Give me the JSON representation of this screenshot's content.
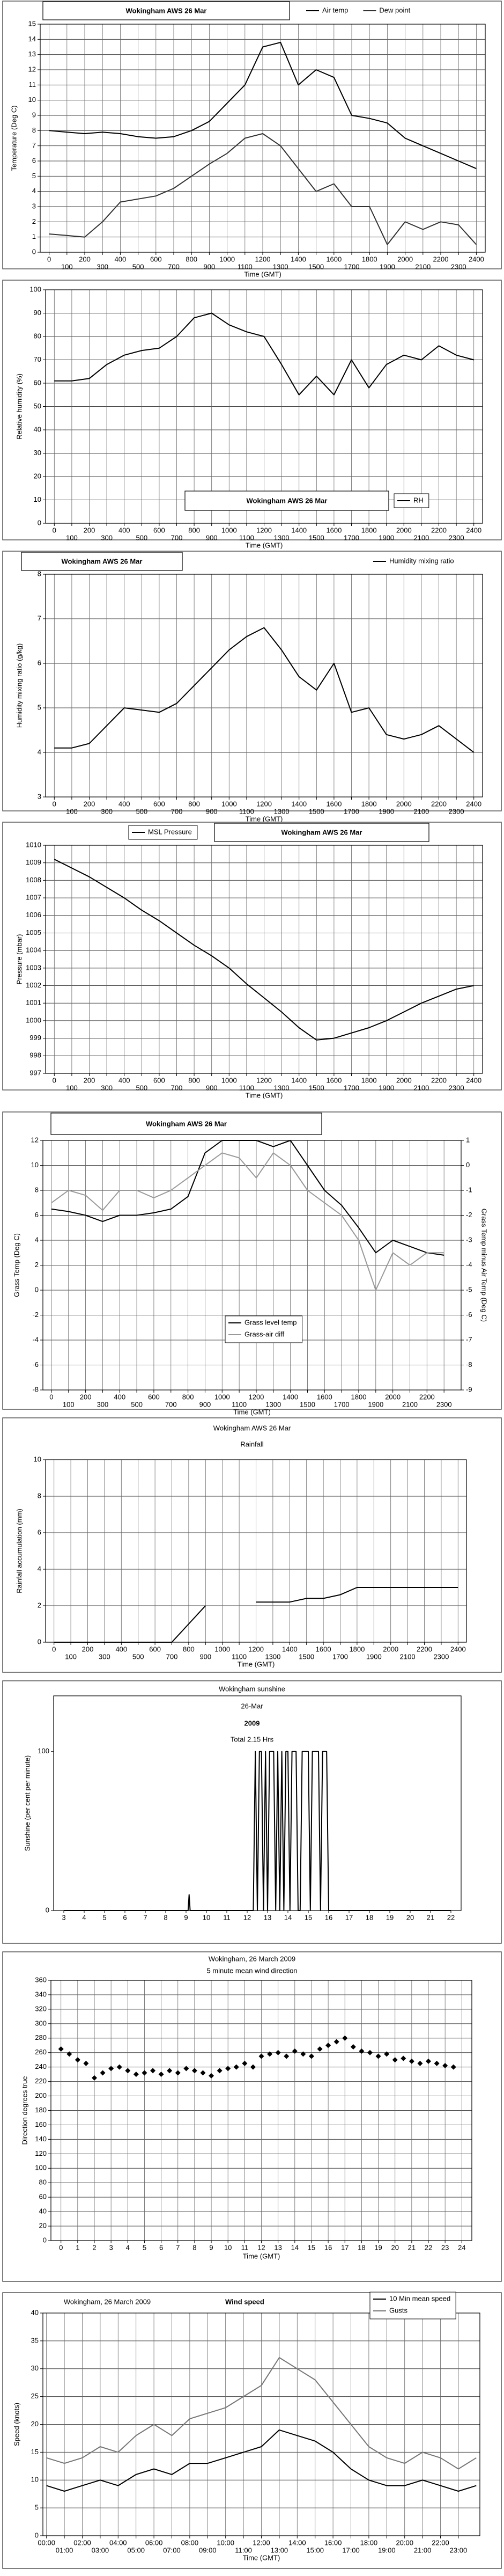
{
  "chart_data": [
    {
      "type": "line",
      "title": "Wokingham AWS 26 Mar",
      "x_label": "Time (GMT)",
      "y_label": "Temperature (Deg C)",
      "grid": true,
      "x": [
        0,
        100,
        200,
        300,
        400,
        500,
        600,
        700,
        800,
        900,
        1000,
        1100,
        1200,
        1300,
        1400,
        1500,
        1600,
        1700,
        1800,
        1900,
        2000,
        2100,
        2200,
        2300,
        2400
      ],
      "xlim": [
        -50,
        2450
      ],
      "xticks": [
        0,
        100,
        200,
        300,
        400,
        500,
        600,
        700,
        800,
        900,
        1000,
        1100,
        1200,
        1300,
        1400,
        1500,
        1600,
        1700,
        1800,
        1900,
        2000,
        2100,
        2200,
        2300,
        2400
      ],
      "ylim": [
        0,
        15
      ],
      "yticks": [
        0,
        1,
        2,
        3,
        4,
        5,
        6,
        7,
        8,
        9,
        10,
        11,
        12,
        13,
        14,
        15
      ],
      "series": [
        {
          "name": "Air temp",
          "color": "#000000",
          "values": [
            8,
            7.9,
            7.8,
            7.9,
            7.8,
            7.6,
            7.5,
            7.6,
            8,
            8.6,
            9.8,
            11,
            13.5,
            13.8,
            11,
            12,
            11.5,
            9,
            8.8,
            8.5,
            7.5,
            7,
            6.5,
            6,
            5.5
          ]
        },
        {
          "name": "Dew point",
          "color": "#333333",
          "values": [
            1.2,
            1.1,
            1,
            2,
            3.3,
            3.5,
            3.7,
            4.2,
            5,
            5.8,
            6.5,
            7.5,
            7.8,
            7,
            5.5,
            4,
            4.5,
            3,
            3,
            0.5,
            2,
            1.5,
            2,
            1.8,
            0.5
          ]
        }
      ]
    },
    {
      "type": "line",
      "title": "Wokingham AWS 26 Mar",
      "x_label": "Time (GMT)",
      "y_label": "Relative humidity (%)",
      "grid": true,
      "x": [
        0,
        100,
        200,
        300,
        400,
        500,
        600,
        700,
        800,
        900,
        1000,
        1100,
        1200,
        1300,
        1400,
        1500,
        1600,
        1700,
        1800,
        1900,
        2000,
        2100,
        2200,
        2300,
        2400
      ],
      "xlim": [
        -50,
        2450
      ],
      "xticks": [
        0,
        100,
        200,
        300,
        400,
        500,
        600,
        700,
        800,
        900,
        1000,
        1100,
        1200,
        1300,
        1400,
        1500,
        1600,
        1700,
        1800,
        1900,
        2000,
        2100,
        2200,
        2300,
        2400
      ],
      "ylim": [
        0,
        100
      ],
      "yticks": [
        0,
        10,
        20,
        30,
        40,
        50,
        60,
        70,
        80,
        90,
        100
      ],
      "series": [
        {
          "name": "RH",
          "color": "#000000",
          "values": [
            61,
            61,
            62,
            68,
            72,
            74,
            75,
            80,
            88,
            90,
            85,
            82,
            80,
            68,
            55,
            63,
            55,
            70,
            58,
            68,
            72,
            70,
            76,
            72,
            70
          ]
        }
      ]
    },
    {
      "type": "line",
      "title": "Wokingham AWS 26 Mar",
      "x_label": "Time (GMT)",
      "y_label": "Humidity mixing ratio (g/kg)",
      "grid": true,
      "x": [
        0,
        100,
        200,
        300,
        400,
        500,
        600,
        700,
        800,
        900,
        1000,
        1100,
        1200,
        1300,
        1400,
        1500,
        1600,
        1700,
        1800,
        1900,
        2000,
        2100,
        2200,
        2300,
        2400
      ],
      "xlim": [
        -50,
        2450
      ],
      "xticks": [
        0,
        100,
        200,
        300,
        400,
        500,
        600,
        700,
        800,
        900,
        1000,
        1100,
        1200,
        1300,
        1400,
        1500,
        1600,
        1700,
        1800,
        1900,
        2000,
        2100,
        2200,
        2300,
        2400
      ],
      "ylim": [
        3,
        8
      ],
      "yticks": [
        3,
        4,
        5,
        6,
        7,
        8
      ],
      "series": [
        {
          "name": "Humidity mixing ratio",
          "color": "#000000",
          "values": [
            4.1,
            4.1,
            4.2,
            4.6,
            5,
            4.95,
            4.9,
            5.1,
            5.5,
            5.9,
            6.3,
            6.6,
            6.8,
            6.3,
            5.7,
            5.4,
            6,
            4.9,
            5,
            4.4,
            4.3,
            4.4,
            4.6,
            4.3,
            4
          ]
        }
      ]
    },
    {
      "type": "line",
      "title": "Wokingham AWS 26 Mar",
      "x_label": "Time (GMT)",
      "y_label": "Pressure (mbar)",
      "grid": true,
      "x": [
        0,
        100,
        200,
        300,
        400,
        500,
        600,
        700,
        800,
        900,
        1000,
        1100,
        1200,
        1300,
        1400,
        1500,
        1600,
        1700,
        1800,
        1900,
        2000,
        2100,
        2200,
        2300,
        2400
      ],
      "xlim": [
        -50,
        2450
      ],
      "xticks": [
        0,
        100,
        200,
        300,
        400,
        500,
        600,
        700,
        800,
        900,
        1000,
        1100,
        1200,
        1300,
        1400,
        1500,
        1600,
        1700,
        1800,
        1900,
        2000,
        2100,
        2200,
        2300,
        2400
      ],
      "ylim": [
        997,
        1010
      ],
      "yticks": [
        997,
        998,
        999,
        1000,
        1001,
        1002,
        1003,
        1004,
        1005,
        1006,
        1007,
        1008,
        1009,
        1010
      ],
      "series": [
        {
          "name": "MSL Pressure",
          "color": "#000000",
          "values": [
            1009.2,
            1008.7,
            1008.2,
            1007.6,
            1007,
            1006.3,
            1005.7,
            1005,
            1004.3,
            1003.7,
            1003,
            1002.1,
            1001.3,
            1000.5,
            999.6,
            998.9,
            999,
            999.3,
            999.6,
            1000,
            1000.5,
            1001,
            1001.4,
            1001.8,
            1002
          ]
        }
      ]
    },
    {
      "type": "line",
      "title": "Wokingham AWS 26 Mar",
      "x_label": "Time (GMT)",
      "y_label": "Grass Temp (Deg C)",
      "y2_label": "Grass Temp minus Air Temp (Deg C)",
      "grid": true,
      "x": [
        0,
        100,
        200,
        300,
        400,
        500,
        600,
        700,
        800,
        900,
        1000,
        1100,
        1200,
        1300,
        1400,
        1500,
        1600,
        1700,
        1800,
        1900,
        2000,
        2100,
        2200,
        2300
      ],
      "xlim": [
        -50,
        2400
      ],
      "xticks": [
        0,
        100,
        200,
        300,
        400,
        500,
        600,
        700,
        800,
        900,
        1000,
        1100,
        1200,
        1300,
        1400,
        1500,
        1600,
        1700,
        1800,
        1900,
        2000,
        2100,
        2200,
        2300
      ],
      "ylim": [
        -8,
        12
      ],
      "yticks": [
        -8,
        -6,
        -4,
        -2,
        0,
        2,
        4,
        6,
        8,
        10,
        12
      ],
      "y2lim": [
        -9,
        1
      ],
      "y2ticks": [
        -9,
        -8,
        -7,
        -6,
        -5,
        -4,
        -3,
        -2,
        -1,
        0,
        1
      ],
      "series": [
        {
          "name": "Grass level temp",
          "color": "#000000",
          "values": [
            6.5,
            6.3,
            6,
            5.5,
            6,
            6,
            6.2,
            6.5,
            7.5,
            11,
            12,
            12,
            12,
            11.5,
            12,
            10,
            8,
            6.8,
            5,
            3,
            4,
            3.5,
            3,
            2.8
          ]
        },
        {
          "name": "Grass-air diff",
          "color": "#999999",
          "axis": "y2",
          "values": [
            -1.5,
            -1,
            -1.2,
            -1.8,
            -1,
            -1,
            -1.3,
            -1,
            -0.5,
            0,
            0.5,
            0.3,
            -0.5,
            0.5,
            0,
            -1,
            -1.5,
            -2,
            -3,
            -5,
            -3.5,
            -4,
            -3.5,
            -3.5
          ]
        }
      ]
    },
    {
      "type": "line",
      "title": "Wokingham AWS 26 Mar",
      "subtitle": "Rainfall",
      "x_label": "Time (GMT)",
      "y_label": "Rainfall accumulation (mm)",
      "grid": true,
      "x": [
        0,
        100,
        200,
        300,
        400,
        500,
        600,
        700,
        800,
        900,
        1000,
        1100,
        1200,
        1300,
        1400,
        1500,
        1600,
        1700,
        1800,
        1900,
        2000,
        2100,
        2200,
        2300,
        2400
      ],
      "xlim": [
        -50,
        2450
      ],
      "xticks": [
        0,
        100,
        200,
        300,
        400,
        500,
        600,
        700,
        800,
        900,
        1000,
        1100,
        1200,
        1300,
        1400,
        1500,
        1600,
        1700,
        1800,
        1900,
        2000,
        2100,
        2200,
        2300,
        2400
      ],
      "ylim": [
        0,
        10
      ],
      "yticks": [
        0,
        2,
        4,
        6,
        8,
        10
      ],
      "series": [
        {
          "name": "Rainfall",
          "color": "#000000",
          "values": [
            0,
            0,
            0,
            0,
            0,
            0,
            0,
            0,
            1,
            2,
            null,
            null,
            2.2,
            2.2,
            2.2,
            2.4,
            2.4,
            2.6,
            3,
            3,
            3,
            3,
            3,
            3,
            3
          ]
        }
      ]
    },
    {
      "type": "line",
      "title": "Wokingham sunshine",
      "annotations": [
        "26-Mar",
        "2009",
        "Total 2.15 Hrs"
      ],
      "y_label": "Sunshine (per cent per minute)",
      "grid": false,
      "x": [
        3,
        9.1,
        9.15,
        9.2,
        12.3,
        12.4,
        12.5,
        12.6,
        12.7,
        12.8,
        12.9,
        13,
        13.1,
        13.2,
        13.3,
        13.4,
        13.5,
        13.6,
        13.7,
        13.8,
        13.9,
        14,
        14.1,
        14.2,
        14.3,
        14.4,
        14.5,
        14.6,
        14.7,
        14.8,
        14.9,
        15,
        15.1,
        15.2,
        15.3,
        15.4,
        15.5,
        15.6,
        15.7,
        15.8,
        15.9,
        16,
        16.1,
        22
      ],
      "xlim": [
        2.5,
        22.5
      ],
      "xticks": [
        3,
        4,
        5,
        6,
        7,
        8,
        9,
        10,
        11,
        12,
        13,
        14,
        15,
        16,
        17,
        18,
        19,
        20,
        21,
        22
      ],
      "ylim": [
        0,
        135
      ],
      "yticks": [
        0,
        100
      ],
      "series": [
        {
          "name": "Sunshine",
          "color": "#000000",
          "values": [
            0,
            0,
            10,
            0,
            0,
            100,
            0,
            100,
            100,
            0,
            100,
            0,
            100,
            100,
            100,
            0,
            100,
            0,
            100,
            0,
            100,
            100,
            0,
            100,
            100,
            100,
            0,
            0,
            100,
            100,
            100,
            100,
            0,
            100,
            100,
            100,
            100,
            0,
            100,
            100,
            100,
            0,
            0,
            0
          ]
        }
      ]
    },
    {
      "type": "scatter",
      "title": "Wokingham,  26 March 2009",
      "subtitle": "5 minute mean wind direction",
      "x_label": "Time (GMT)",
      "y_label": "Direction degrees true",
      "grid": true,
      "x": [
        0,
        0.5,
        1,
        1.5,
        2,
        2.5,
        3,
        3.5,
        4,
        4.5,
        5,
        5.5,
        6,
        6.5,
        7,
        7.5,
        8,
        8.5,
        9,
        9.5,
        10,
        10.5,
        11,
        11.5,
        12,
        12.5,
        13,
        13.5,
        14,
        14.5,
        15,
        15.5,
        16,
        16.5,
        17,
        17.5,
        18,
        18.5,
        19,
        19.5,
        20,
        20.5,
        21,
        21.5,
        22,
        22.5,
        23,
        23.5
      ],
      "xlim": [
        -0.6,
        24.6
      ],
      "xticks": [
        0,
        1,
        2,
        3,
        4,
        5,
        6,
        7,
        8,
        9,
        10,
        11,
        12,
        13,
        14,
        15,
        16,
        17,
        18,
        19,
        20,
        21,
        22,
        23,
        24
      ],
      "ylim": [
        0,
        360
      ],
      "yticks": [
        0,
        20,
        40,
        60,
        80,
        100,
        120,
        140,
        160,
        180,
        200,
        220,
        240,
        260,
        280,
        300,
        320,
        340,
        360
      ],
      "series": [
        {
          "name": "Direction",
          "color": "#000000",
          "values": [
            265,
            258,
            250,
            245,
            225,
            232,
            238,
            240,
            235,
            230,
            232,
            235,
            230,
            235,
            232,
            238,
            235,
            232,
            228,
            235,
            238,
            240,
            245,
            240,
            255,
            258,
            260,
            255,
            262,
            258,
            255,
            265,
            270,
            275,
            280,
            268,
            262,
            260,
            255,
            258,
            250,
            252,
            248,
            245,
            248,
            245,
            242,
            240
          ]
        }
      ]
    },
    {
      "type": "line",
      "title": "Wokingham,  26 March 2009",
      "subtitle": "Wind speed",
      "x_label": "Time (GMT)",
      "y_label": "Speed (knots)",
      "grid": true,
      "x": [
        0,
        1,
        2,
        3,
        4,
        5,
        6,
        7,
        8,
        9,
        10,
        11,
        12,
        13,
        14,
        15,
        16,
        17,
        18,
        19,
        20,
        21,
        22,
        23,
        24
      ],
      "xlim": [
        -0.2,
        24.2
      ],
      "xticks": [
        {
          "value": 0,
          "label": "00:00"
        },
        {
          "value": 1,
          "label": "01:00"
        },
        {
          "value": 2,
          "label": "02:00"
        },
        {
          "value": 3,
          "label": "03:00"
        },
        {
          "value": 4,
          "label": "04:00"
        },
        {
          "value": 5,
          "label": "05:00"
        },
        {
          "value": 6,
          "label": "06:00"
        },
        {
          "value": 7,
          "label": "07:00"
        },
        {
          "value": 8,
          "label": "08:00"
        },
        {
          "value": 9,
          "label": "09:00"
        },
        {
          "value": 10,
          "label": "10:00"
        },
        {
          "value": 11,
          "label": "11:00"
        },
        {
          "value": 12,
          "label": "12:00"
        },
        {
          "value": 13,
          "label": "13:00"
        },
        {
          "value": 14,
          "label": "14:00"
        },
        {
          "value": 15,
          "label": "15:00"
        },
        {
          "value": 16,
          "label": "16:00"
        },
        {
          "value": 17,
          "label": "17:00"
        },
        {
          "value": 18,
          "label": "18:00"
        },
        {
          "value": 19,
          "label": "19:00"
        },
        {
          "value": 20,
          "label": "20:00"
        },
        {
          "value": 21,
          "label": "21:00"
        },
        {
          "value": 22,
          "label": "22:00"
        },
        {
          "value": 23,
          "label": "23:00"
        }
      ],
      "ylim": [
        0,
        40
      ],
      "yticks": [
        0,
        5,
        10,
        15,
        20,
        25,
        30,
        35,
        40
      ],
      "series": [
        {
          "name": "10 Min mean speed",
          "color": "#000000",
          "values": [
            9,
            8,
            9,
            10,
            9,
            11,
            12,
            11,
            13,
            13,
            14,
            15,
            16,
            19,
            18,
            17,
            15,
            12,
            10,
            9,
            9,
            10,
            9,
            8,
            9
          ]
        },
        {
          "name": "Gusts",
          "color": "#777777",
          "values": [
            14,
            13,
            14,
            16,
            15,
            18,
            20,
            18,
            21,
            22,
            23,
            25,
            27,
            32,
            30,
            28,
            24,
            20,
            16,
            14,
            13,
            15,
            14,
            12,
            14
          ]
        }
      ]
    }
  ]
}
